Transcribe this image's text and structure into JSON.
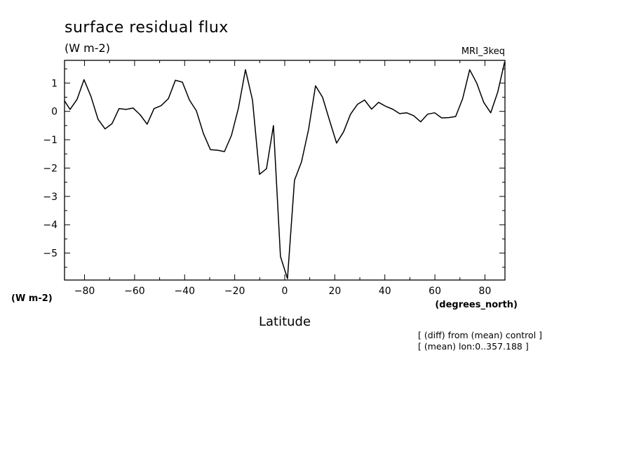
{
  "chart_data": {
    "type": "line",
    "title": "surface residual flux",
    "units": "(W m-2)",
    "dataset": "MRI_3keq",
    "ylabel": "(W m-2)",
    "xlabel": "Latitude",
    "xunit": "(degrees_north)",
    "notes": [
      "[ (diff) from (mean) control ]",
      "[ (mean) lon:0..357.188 ]"
    ],
    "xlim": [
      -88,
      88
    ],
    "ylim": [
      -5.95,
      1.8
    ],
    "xticks": [
      -80,
      -60,
      -40,
      -20,
      0,
      20,
      40,
      60,
      80
    ],
    "xtick_labels": [
      "-80",
      "-60",
      "-40",
      "-20",
      "0",
      "20",
      "40",
      "60",
      "80"
    ],
    "yticks": [
      1,
      0,
      -1,
      -2,
      -3,
      -4,
      -5
    ],
    "ytick_labels": [
      "1",
      "0",
      "-1",
      "-2",
      "-3",
      "-4",
      "-5"
    ],
    "grid": false,
    "series": [
      {
        "x": [
          -88.6,
          -85.8,
          -83.0,
          -80.2,
          -77.4,
          -74.6,
          -71.8,
          -69.0,
          -66.2,
          -63.4,
          -60.6,
          -57.8,
          -55.0,
          -52.2,
          -49.4,
          -46.5,
          -43.7,
          -40.9,
          -38.1,
          -35.3,
          -32.5,
          -29.7,
          -26.9,
          -24.1,
          -21.3,
          -18.5,
          -15.7,
          -12.9,
          -10.1,
          -7.3,
          -4.5,
          -1.7,
          1.1,
          3.9,
          6.7,
          9.5,
          12.3,
          15.1,
          17.9,
          20.7,
          23.5,
          26.3,
          29.1,
          31.9,
          34.7,
          37.5,
          40.3,
          43.1,
          45.9,
          48.7,
          51.5,
          54.3,
          57.1,
          59.9,
          62.7,
          65.5,
          68.3,
          71.1,
          73.9,
          76.7,
          79.5,
          82.3,
          85.1,
          87.9
        ],
        "y": [
          0.45,
          0.07,
          0.42,
          1.12,
          0.52,
          -0.28,
          -0.62,
          -0.43,
          0.1,
          0.07,
          0.12,
          -0.12,
          -0.45,
          0.1,
          0.2,
          0.45,
          1.1,
          1.03,
          0.4,
          0.02,
          -0.78,
          -1.35,
          -1.37,
          -1.42,
          -0.85,
          0.12,
          1.47,
          0.4,
          -2.22,
          -2.02,
          -0.5,
          -5.12,
          -5.9,
          -2.43,
          -1.78,
          -0.65,
          0.9,
          0.5,
          -0.32,
          -1.12,
          -0.72,
          -0.1,
          0.25,
          0.4,
          0.08,
          0.32,
          0.18,
          0.08,
          -0.08,
          -0.05,
          -0.15,
          -0.37,
          -0.1,
          -0.05,
          -0.23,
          -0.22,
          -0.18,
          0.45,
          1.47,
          1.0,
          0.32,
          -0.05,
          0.68,
          1.75
        ]
      }
    ]
  }
}
